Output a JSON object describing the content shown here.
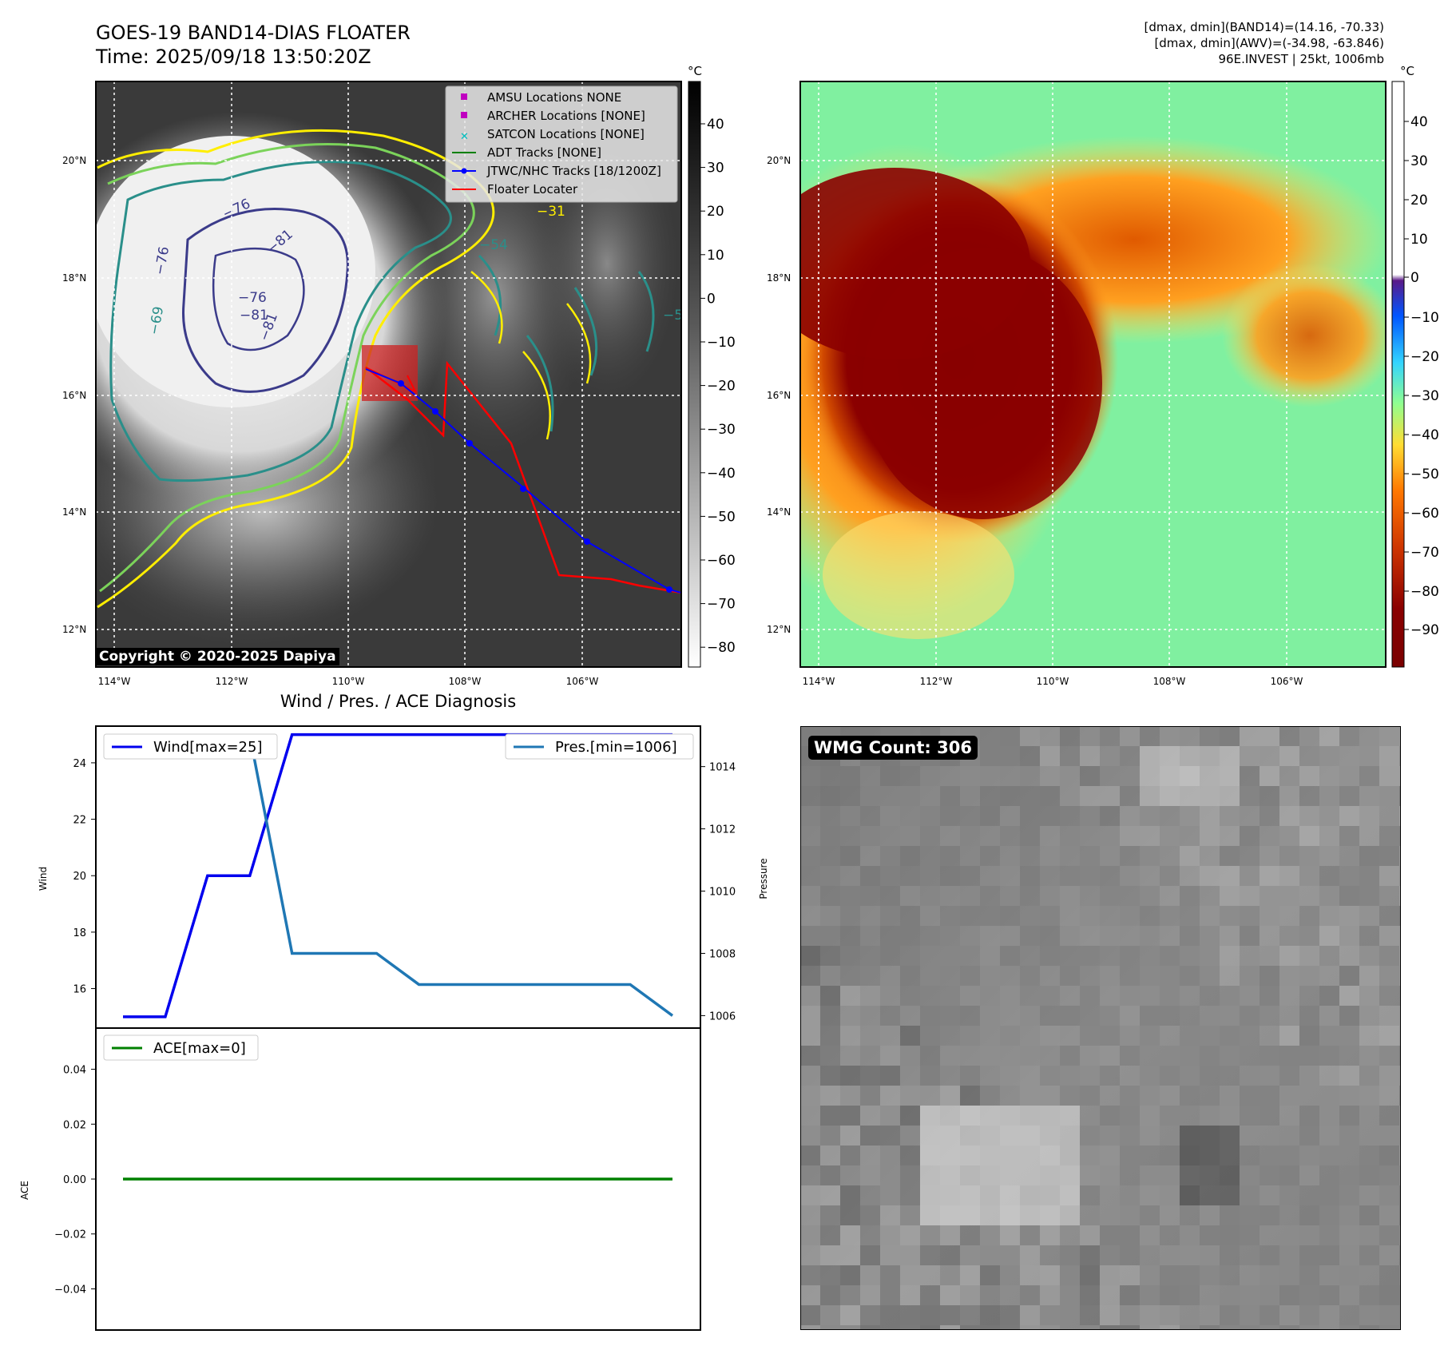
{
  "header": {
    "title_line1": "GOES-19 BAND14-DIAS FLOATER",
    "title_line2": "Time: 2025/09/18 13:50:20Z",
    "stat_line1": "[dmax, dmin](BAND14)=(14.16, -70.33)",
    "stat_line2": "[dmax, dmin](AWV)=(-34.98, -63.846)",
    "stat_line3": "96E.INVEST | 25kt, 1006mb"
  },
  "map_axes": {
    "lon_labels": [
      "114°W",
      "112°W",
      "110°W",
      "108°W",
      "106°W"
    ],
    "lat_labels": [
      "20°N",
      "18°N",
      "16°N",
      "14°N",
      "12°N"
    ],
    "copyright": "Copyright © 2020-2025 Dapiya"
  },
  "ir_colorbar": {
    "unit": "°C",
    "ticks": [
      "40",
      "30",
      "20",
      "10",
      "0",
      "−10",
      "−20",
      "−30",
      "−40",
      "−50",
      "−60",
      "−70",
      "−80"
    ]
  },
  "awv_colorbar": {
    "unit": "°C",
    "ticks": [
      "40",
      "30",
      "20",
      "10",
      "0",
      "−10",
      "−20",
      "−30",
      "−40",
      "−50",
      "−60",
      "−70",
      "−80",
      "−90"
    ]
  },
  "contour_labels": [
    "−76",
    "−76",
    "−76",
    "−81",
    "−81",
    "−69",
    "−54",
    "−31",
    "−54",
    "−81"
  ],
  "legend": {
    "items": [
      {
        "label": "AMSU Locations NONE",
        "color": "#c000c0",
        "kind": "square"
      },
      {
        "label": "ARCHER Locations [NONE]",
        "color": "#c000c0",
        "kind": "square"
      },
      {
        "label": "SATCON Locations [NONE]",
        "color": "#00c0c0",
        "kind": "x"
      },
      {
        "label": "ADT Tracks [NONE]",
        "color": "#008000",
        "kind": "line"
      },
      {
        "label": "JTWC/NHC Tracks [18/1200Z]",
        "color": "#0000ff",
        "kind": "line-dot"
      },
      {
        "label": "Floater Locater",
        "color": "#ff0000",
        "kind": "line"
      }
    ]
  },
  "diagnosis": {
    "title": "Wind / Pres. / ACE Diagnosis",
    "wind_ylabel": "Wind",
    "pres_ylabel": "Pressure",
    "ace_ylabel": "ACE",
    "wind_legend": "Wind[max=25]",
    "pres_legend": "Pres.[min=1006]",
    "ace_legend": "ACE[max=0]",
    "wind_ticks": [
      "24",
      "22",
      "20",
      "18",
      "16"
    ],
    "pres_ticks": [
      "1014",
      "1012",
      "1010",
      "1008",
      "1006"
    ],
    "ace_ticks": [
      "0.04",
      "0.02",
      "0.00",
      "−0.02",
      "−0.04"
    ]
  },
  "wmg": {
    "label": "WMG Count: 306"
  },
  "colors": {
    "wind": "#0000ee",
    "pressure": "#1f77b4",
    "ace": "#008000",
    "track_jtwc": "#0000ff",
    "track_floater": "#ff0000"
  },
  "chart_data": [
    {
      "type": "line",
      "title": "Wind / Pres. / ACE Diagnosis",
      "x": [
        0,
        1,
        2,
        3,
        4,
        5,
        6,
        7,
        8,
        9,
        10,
        11,
        12,
        13
      ],
      "series": [
        {
          "name": "Wind[max=25]",
          "values": [
            15,
            15,
            20,
            20,
            25,
            25,
            25,
            25,
            25,
            25,
            25,
            25,
            25,
            25
          ],
          "ylim": [
            14.6,
            25.3
          ]
        },
        {
          "name": "Pres.[min=1006]",
          "values": [
            1015,
            1015,
            1015,
            1015,
            1008,
            1008,
            1008,
            1007,
            1007,
            1007,
            1007,
            1007,
            1007,
            1006
          ],
          "ylim": [
            1005.6,
            1015.3
          ]
        }
      ],
      "ylabel": "Wind",
      "ylabel2": "Pressure"
    },
    {
      "type": "line",
      "x": [
        0,
        13
      ],
      "series": [
        {
          "name": "ACE[max=0]",
          "values": [
            0,
            0
          ]
        }
      ],
      "ylabel": "ACE",
      "ylim": [
        -0.055,
        0.055
      ]
    }
  ]
}
